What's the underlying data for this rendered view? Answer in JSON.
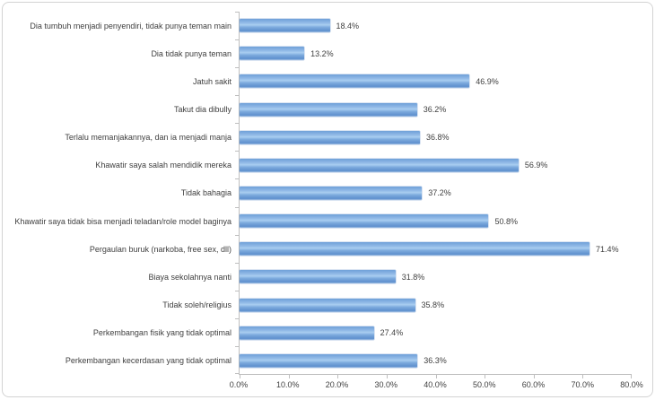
{
  "chart_data": {
    "type": "bar",
    "orientation": "horizontal",
    "title": "",
    "xlabel": "",
    "ylabel": "",
    "grid": false,
    "legend": "none",
    "xlim": [
      0,
      80
    ],
    "x_ticks": [
      "0.0%",
      "10.0%",
      "20.0%",
      "30.0%",
      "40.0%",
      "50.0%",
      "60.0%",
      "70.0%",
      "80.0%"
    ],
    "categories": [
      "Dia tumbuh menjadi penyendiri, tidak punya teman main",
      "Dia tidak punya teman",
      "Jatuh sakit",
      "Takut dia dibully",
      "Terlalu memanjakannya, dan ia menjadi manja",
      "Khawatir saya salah mendidik mereka",
      "Tidak bahagia",
      "Khawatir saya tidak bisa menjadi teladan/role model baginya",
      "Pergaulan buruk (narkoba, free sex, dll)",
      "Biaya sekolahnya nanti",
      "Tidak soleh/religius",
      "Perkembangan fisik yang tidak optimal",
      "Perkembangan kecerdasan yang tidak optimal"
    ],
    "values": [
      18.4,
      13.2,
      46.9,
      36.2,
      36.8,
      56.9,
      37.2,
      50.8,
      71.4,
      31.8,
      35.8,
      27.4,
      36.3
    ],
    "value_labels": [
      "18.4%",
      "13.2%",
      "46.9%",
      "36.2%",
      "36.8%",
      "56.9%",
      "37.2%",
      "50.8%",
      "71.4%",
      "31.8%",
      "35.8%",
      "27.4%",
      "36.3%"
    ],
    "colors": {
      "bar_blue": "#7da9dc",
      "axis_line": "#bfbfbf",
      "text": "#404040",
      "frame_border": "#d3d3d3"
    }
  }
}
